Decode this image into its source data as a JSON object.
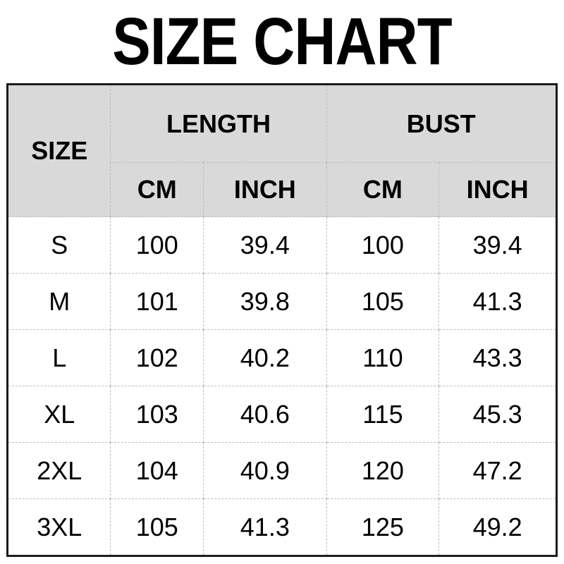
{
  "title": "SIZE CHART",
  "chart_data": {
    "type": "table",
    "title": "SIZE CHART",
    "columns": [
      "SIZE",
      "LENGTH CM",
      "LENGTH INCH",
      "BUST CM",
      "BUST INCH"
    ],
    "rows": [
      [
        "S",
        100,
        39.4,
        100,
        39.4
      ],
      [
        "M",
        101,
        39.8,
        105,
        41.3
      ],
      [
        "L",
        102,
        40.2,
        110,
        43.3
      ],
      [
        "XL",
        103,
        40.6,
        115,
        45.3
      ],
      [
        "2XL",
        104,
        40.9,
        120,
        47.2
      ],
      [
        "3XL",
        105,
        41.3,
        125,
        49.2
      ]
    ]
  },
  "table": {
    "corner_label": "SIZE",
    "group_headers": {
      "length": "LENGTH",
      "bust": "BUST"
    },
    "sub_headers": {
      "length_cm": "CM",
      "length_inch": "INCH",
      "bust_cm": "CM",
      "bust_inch": "INCH"
    },
    "rows": [
      {
        "size": "S",
        "length_cm": "100",
        "length_inch": "39.4",
        "bust_cm": "100",
        "bust_inch": "39.4"
      },
      {
        "size": "M",
        "length_cm": "101",
        "length_inch": "39.8",
        "bust_cm": "105",
        "bust_inch": "41.3"
      },
      {
        "size": "L",
        "length_cm": "102",
        "length_inch": "40.2",
        "bust_cm": "110",
        "bust_inch": "43.3"
      },
      {
        "size": "XL",
        "length_cm": "103",
        "length_inch": "40.6",
        "bust_cm": "115",
        "bust_inch": "45.3"
      },
      {
        "size": "2XL",
        "length_cm": "104",
        "length_inch": "40.9",
        "bust_cm": "120",
        "bust_inch": "47.2"
      },
      {
        "size": "3XL",
        "length_cm": "105",
        "length_inch": "41.3",
        "bust_cm": "125",
        "bust_inch": "49.2"
      }
    ]
  },
  "colors": {
    "background": "#ffffff",
    "header_bg": "#d9d9d9",
    "outer_border": "#1c1c1c",
    "inner_border": "#bdbdbd",
    "text": "#000000"
  }
}
